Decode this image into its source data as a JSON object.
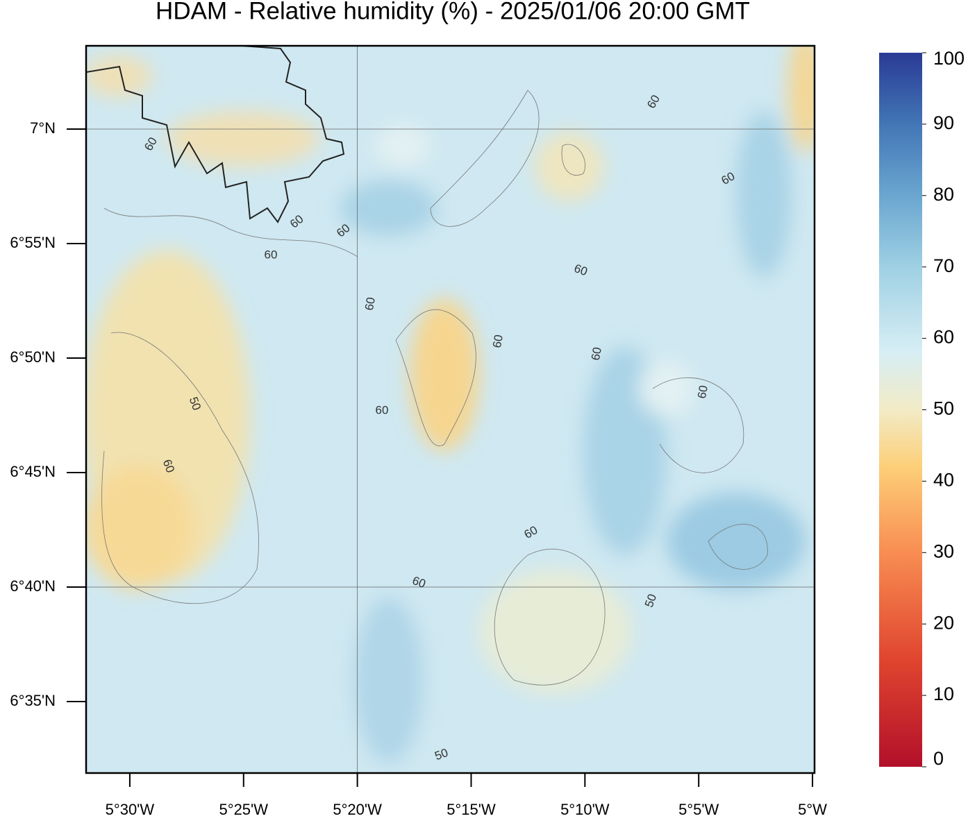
{
  "title": "HDAM - Relative humidity (%)  -  2025/01/06  20:00 GMT",
  "map": {
    "latlim": [
      6.5313,
      7.0606
    ],
    "lonlim": [
      -5.532,
      -4.9985
    ],
    "lat_ticks": [
      {
        "value": 7,
        "label": "7°N"
      },
      {
        "value": 6.916667,
        "label": "6°55'N"
      },
      {
        "value": 6.833333,
        "label": "6°50'N"
      },
      {
        "value": 6.75,
        "label": "6°45'N"
      },
      {
        "value": 6.666667,
        "label": "6°40'N"
      },
      {
        "value": 6.583333,
        "label": "6°35'N"
      }
    ],
    "lon_ticks": [
      {
        "value": -5.5,
        "label": "5°30'W"
      },
      {
        "value": -5.416667,
        "label": "5°25'W"
      },
      {
        "value": -5.333333,
        "label": "5°20'W"
      },
      {
        "value": -5.25,
        "label": "5°15'W"
      },
      {
        "value": -5.166667,
        "label": "5°10'W"
      },
      {
        "value": -5.083333,
        "label": "5°5'W"
      },
      {
        "value": -5,
        "label": "5°W"
      }
    ],
    "grid_lat": [
      7,
      6.666667
    ],
    "grid_lon": [
      -5.333333
    ],
    "contour_labels": [
      "60",
      "60",
      "60",
      "60",
      "60",
      "60",
      "60",
      "60",
      "60",
      "60",
      "60",
      "60",
      "60",
      "60",
      "50",
      "50",
      "50",
      "60"
    ]
  },
  "colorbar": {
    "lim": [
      0,
      100
    ],
    "ticks": [
      0,
      10,
      20,
      30,
      40,
      50,
      60,
      70,
      80,
      90,
      100
    ]
  }
}
